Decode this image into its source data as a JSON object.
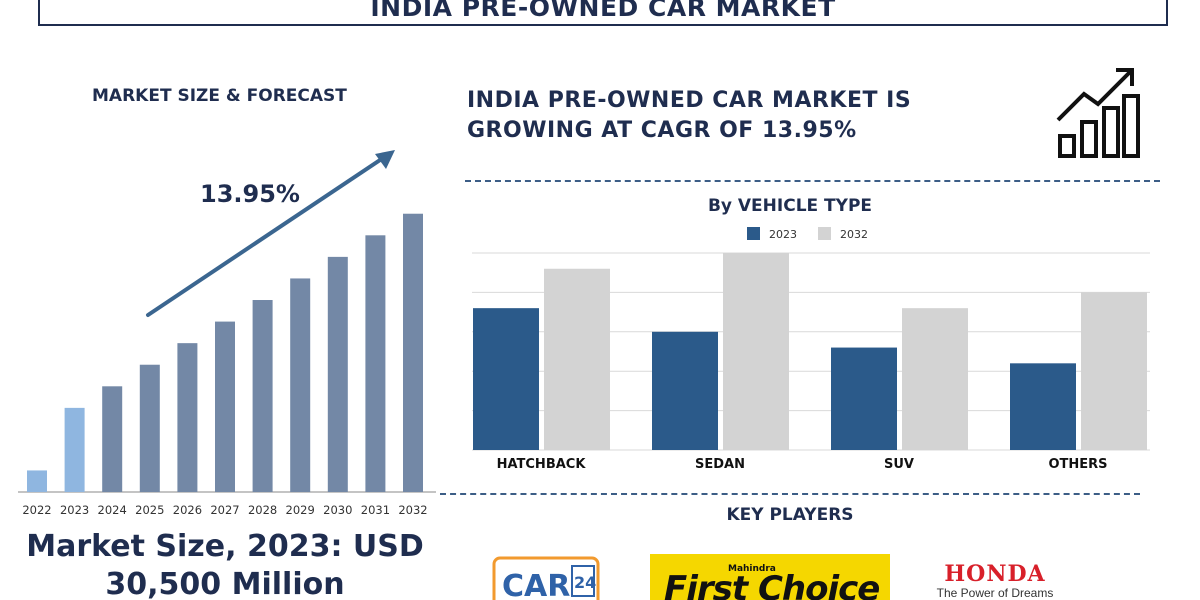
{
  "title": "INDIA PRE-OWNED CAR MARKET",
  "left_heading": "MARKET SIZE & FORECAST",
  "cagr_label": "13.95%",
  "cagr_text_line1": "INDIA PRE-OWNED CAR MARKET IS",
  "cagr_text_line2": "GROWING AT CAGR OF 13.95%",
  "market_size_line1": "Market Size, 2023: USD",
  "market_size_line2": "30,500 Million",
  "right_heading": "By VEHICLE TYPE",
  "key_players_heading": "KEY PLAYERS",
  "key_players": {
    "cars24_line1": "CARS",
    "cars24_line2": "24",
    "firstchoice_small": "Mahindra",
    "firstchoice_big": "First Choice",
    "honda_name": "HONDA",
    "honda_tagline": "The Power of Dreams"
  },
  "colors": {
    "dark_blue": "#2b5a8a",
    "light_gray": "#d3d3d3",
    "slate_bar": "#7388a6",
    "light_blue_bar": "#8fb6e0",
    "text_navy": "#1f2d4f"
  },
  "chart_data": [
    {
      "type": "bar",
      "categories": [
        "2022",
        "2023",
        "2024",
        "2025",
        "2026",
        "2027",
        "2028",
        "2029",
        "2030",
        "2031",
        "2032"
      ],
      "values": [
        1.0,
        3.9,
        4.9,
        5.9,
        6.9,
        7.9,
        8.9,
        9.9,
        10.9,
        11.9,
        12.9
      ],
      "ylim": [
        0,
        14
      ],
      "annotation": "13.95%",
      "grid": false
    },
    {
      "type": "bar",
      "categories": [
        "HATCHBACK",
        "SEDAN",
        "SUV",
        "OTHERS"
      ],
      "series": [
        {
          "name": "2023",
          "values": [
            36,
            30,
            26,
            22
          ]
        },
        {
          "name": "2032",
          "values": [
            46,
            50,
            36,
            40
          ]
        }
      ],
      "ylim": [
        0,
        50
      ],
      "legend": "top-center",
      "grid": true
    }
  ]
}
